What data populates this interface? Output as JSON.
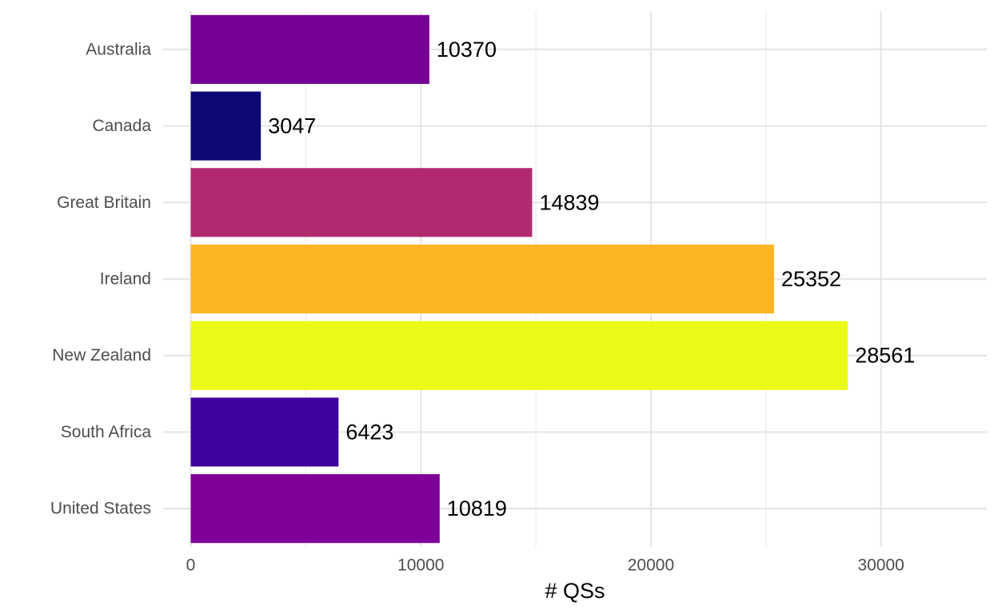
{
  "chart_data": {
    "type": "bar",
    "orientation": "horizontal",
    "categories": [
      "Australia",
      "Canada",
      "Great Britain",
      "Ireland",
      "New Zealand",
      "South Africa",
      "United States"
    ],
    "values": [
      10370,
      3047,
      14839,
      25352,
      28561,
      6423,
      10819
    ],
    "colors": [
      "#750096",
      "#0d0876",
      "#b12a6f",
      "#fbb524",
      "#ebfb19",
      "#3e039d",
      "#7f0098"
    ],
    "data_labels": [
      "10370",
      "3047",
      "14839",
      "25352",
      "28561",
      "6423",
      "10819"
    ],
    "xlabel": "# QSs",
    "ylabel": "",
    "xlim": [
      -1200,
      34600
    ],
    "xticks": [
      0,
      10000,
      20000,
      30000
    ],
    "xtick_labels": [
      "0",
      "10000",
      "20000",
      "30000"
    ],
    "grid": true,
    "legend": "none"
  }
}
